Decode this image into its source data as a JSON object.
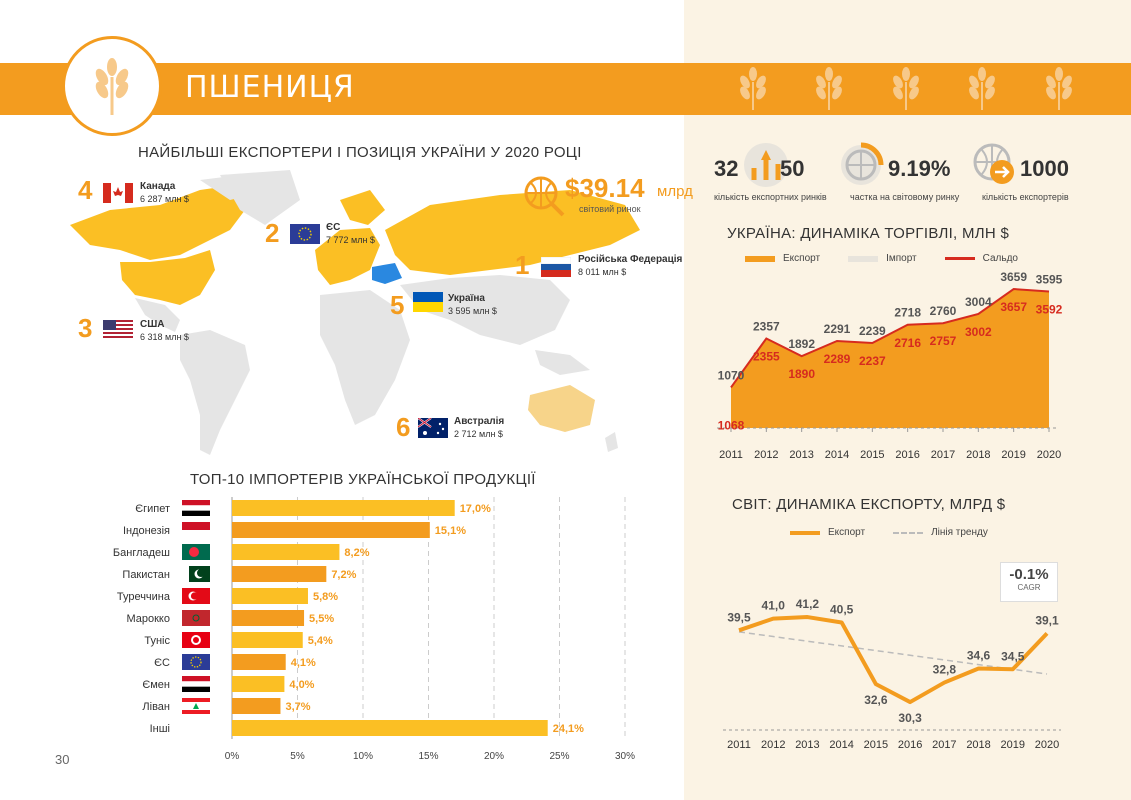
{
  "header": {
    "title": "ПШЕНИЦЯ"
  },
  "page_number": "30",
  "map_section": {
    "title": "НАЙБІЛЬШІ ЕКСПОРТЕРИ І ПОЗИЦІЯ УКРАЇНИ У 2020 РОЦІ",
    "market": {
      "value": "$39.14",
      "unit": "млрд",
      "label": "світовий ринок"
    },
    "exporters": [
      {
        "rank": "1",
        "name": "Російська Федерація",
        "value": "8 011 млн $"
      },
      {
        "rank": "2",
        "name": "ЄС",
        "value": "7 772 млн $"
      },
      {
        "rank": "3",
        "name": "США",
        "value": "6 318 млн $"
      },
      {
        "rank": "4",
        "name": "Канада",
        "value": "6 287 млн $"
      },
      {
        "rank": "5",
        "name": "Україна",
        "value": "3 595 млн $"
      },
      {
        "rank": "6",
        "name": "Австралія",
        "value": "2 712 млн $"
      }
    ]
  },
  "stats": [
    {
      "value_a": "32",
      "value_b": "50",
      "label": "кількість експортних ринків"
    },
    {
      "value": "9.19%",
      "label": "частка на світовому ринку"
    },
    {
      "value": "1000",
      "label": "кількість експортерів"
    }
  ],
  "colors": {
    "orange": "#f39c1f",
    "yellow": "#fbbf24",
    "red": "#d62b1f",
    "grey": "#e8e4dc",
    "right_bg": "#fbf3e4"
  },
  "chart_data": [
    {
      "type": "bar",
      "title": "ТОП-10 ІМПОРТЕРІВ УКРАЇНСЬКОЇ ПРОДУКЦІЇ",
      "orientation": "horizontal",
      "categories": [
        "Єгипет",
        "Індонезія",
        "Бангладеш",
        "Пакистан",
        "Туреччина",
        "Марокко",
        "Туніс",
        "ЄС",
        "Ємен",
        "Ліван",
        "Інші"
      ],
      "values": [
        17.0,
        15.1,
        8.2,
        7.2,
        5.8,
        5.5,
        5.4,
        4.1,
        4.0,
        3.7,
        24.1
      ],
      "value_labels": [
        "17,0%",
        "15,1%",
        "8,2%",
        "7,2%",
        "5,8%",
        "5,5%",
        "5,4%",
        "4,1%",
        "4,0%",
        "3,7%",
        "24,1%"
      ],
      "xticks": [
        "0%",
        "5%",
        "10%",
        "15%",
        "20%",
        "25%",
        "30%"
      ],
      "xlim": [
        0,
        30
      ],
      "grid": "vertical dashed"
    },
    {
      "type": "area",
      "title": "УКРАЇНА: ДИНАМІКА ТОРГІВЛІ, МЛН $",
      "legend": [
        "Експорт",
        "Імпорт",
        "Сальдо"
      ],
      "legend_position": "top",
      "x": [
        "2011",
        "2012",
        "2013",
        "2014",
        "2015",
        "2016",
        "2017",
        "2018",
        "2019",
        "2020"
      ],
      "series": [
        {
          "name": "Експорт",
          "values": [
            1070,
            2357,
            1892,
            2291,
            2239,
            2718,
            2760,
            3004,
            3659,
            3595
          ],
          "labels": [
            "1070",
            "2357",
            "1892",
            "2291",
            "2239",
            "2718",
            "2760",
            "3004",
            "3659",
            "3595"
          ]
        },
        {
          "name": "Імпорт",
          "values": [
            2,
            2,
            2,
            2,
            2,
            2,
            3,
            2,
            2,
            3
          ]
        },
        {
          "name": "Сальдо",
          "values": [
            1068,
            2355,
            1890,
            2289,
            2237,
            2716,
            2757,
            3002,
            3657,
            3592
          ],
          "labels": [
            "1068",
            "2355",
            "1890",
            "2289",
            "2237",
            "2716",
            "2757",
            "3002",
            "3657",
            "3592"
          ]
        }
      ],
      "ylim": [
        0,
        4000
      ]
    },
    {
      "type": "line",
      "title": "СВІТ: ДИНАМІКА ЕКСПОРТУ, МЛРД $",
      "legend": [
        "Експорт",
        "Лінія тренду"
      ],
      "legend_position": "top",
      "x": [
        "2011",
        "2012",
        "2013",
        "2014",
        "2015",
        "2016",
        "2017",
        "2018",
        "2019",
        "2020"
      ],
      "series": [
        {
          "name": "Експорт",
          "values": [
            39.5,
            41.0,
            41.2,
            40.5,
            32.6,
            30.3,
            32.8,
            34.6,
            34.5,
            39.1
          ],
          "labels": [
            "39,5",
            "41,0",
            "41,2",
            "40,5",
            "32,6",
            "30,3",
            "32,8",
            "34,6",
            "34,5",
            "39,1"
          ]
        },
        {
          "name": "Лінія тренду",
          "values": [
            39.3,
            38.7,
            38.1,
            37.5,
            36.9,
            36.3,
            35.7,
            35.1,
            34.5,
            33.9
          ]
        }
      ],
      "cagr": {
        "value": "-0.1%",
        "label": "CAGR"
      },
      "ylim": [
        28,
        43
      ]
    }
  ]
}
